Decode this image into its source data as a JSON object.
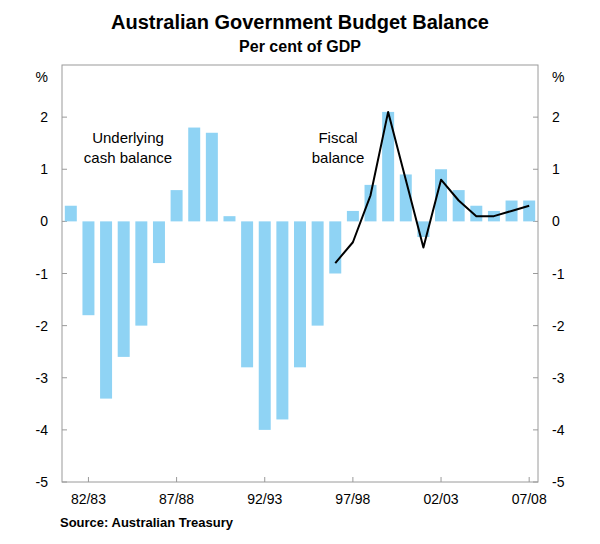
{
  "chart_data": {
    "type": "bar",
    "title": "Australian Government Budget Balance",
    "subtitle": "Per cent of GDP",
    "ylabel": "%",
    "source": "Source: Australian Treasury",
    "categories": [
      null,
      "82/83",
      null,
      null,
      null,
      null,
      "87/88",
      null,
      null,
      null,
      null,
      "92/93",
      null,
      null,
      null,
      null,
      "97/98",
      null,
      null,
      null,
      null,
      "02/03",
      null,
      null,
      null,
      null,
      "07/08"
    ],
    "series": [
      {
        "name": "Underlying cash balance",
        "type": "bar",
        "color": "#8fd3f4",
        "values": [
          0.3,
          -1.8,
          -3.4,
          -2.6,
          -2.0,
          -0.8,
          0.6,
          1.8,
          1.7,
          0.1,
          -2.8,
          -4.0,
          -3.8,
          -2.8,
          -2.0,
          -1.0,
          0.2,
          0.7,
          2.1,
          0.9,
          -0.3,
          1.0,
          0.6,
          0.3,
          0.2,
          0.4,
          0.4
        ]
      },
      {
        "name": "Fiscal balance",
        "type": "line",
        "color": "#000000",
        "values": [
          null,
          null,
          null,
          null,
          null,
          null,
          null,
          null,
          null,
          null,
          null,
          null,
          null,
          null,
          null,
          -0.8,
          -0.4,
          0.5,
          2.1,
          0.8,
          -0.5,
          0.8,
          0.4,
          0.1,
          0.1,
          0.2,
          0.3
        ]
      }
    ],
    "ylim": [
      -5,
      3
    ],
    "yticks": [
      -5,
      -4,
      -3,
      -2,
      -1,
      0,
      1,
      2
    ],
    "grid": false
  }
}
